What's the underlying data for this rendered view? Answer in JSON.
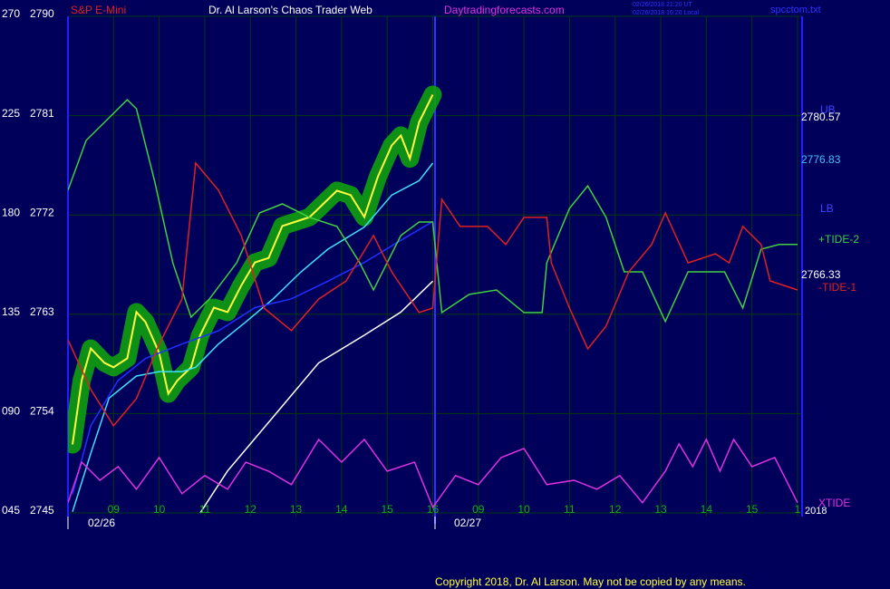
{
  "chart_data": {
    "type": "line",
    "title": "Dr. Al Larson's Chaos Trader Web",
    "subtitle": "S&P E-Mini",
    "site": "Daytradingforecasts.com",
    "timestamps": [
      "02/26/2018 21:20 UT",
      "02/26/2018 16:20 Local"
    ],
    "file": "spcctom.txt",
    "footer": "Copyright 2018, Dr. Al Larson. May not be copied by any means.",
    "dates": [
      "02/26",
      "02/27"
    ],
    "year": "2018",
    "background": "#00005a",
    "grid_color": "#003a10",
    "grid": true,
    "xlim": [
      0,
      16.1
    ],
    "xticks": [
      {
        "value": 1,
        "label": "09"
      },
      {
        "value": 2,
        "label": "10"
      },
      {
        "value": 3,
        "label": "11"
      },
      {
        "value": 4,
        "label": "12"
      },
      {
        "value": 5,
        "label": "13"
      },
      {
        "value": 6,
        "label": "14"
      },
      {
        "value": 7,
        "label": "15"
      },
      {
        "value": 8,
        "label": "16"
      },
      {
        "value": 9,
        "label": "09"
      },
      {
        "value": 10,
        "label": "10"
      },
      {
        "value": 11,
        "label": "11"
      },
      {
        "value": 12,
        "label": "12"
      },
      {
        "value": 13,
        "label": "13"
      },
      {
        "value": 14,
        "label": "14"
      },
      {
        "value": 15,
        "label": "15"
      },
      {
        "value": 16,
        "label": "1"
      }
    ],
    "ylim": [
      2745,
      2790
    ],
    "yticks": [
      2745,
      2754,
      2763,
      2772,
      2781,
      2790
    ],
    "y2lim": [
      45,
      270
    ],
    "y2ticks": [
      {
        "value": 45,
        "label": "045"
      },
      {
        "value": 90,
        "label": "090"
      },
      135,
      180,
      225,
      270
    ],
    "series": [
      {
        "color": "#ffff40",
        "glow": "#10a010",
        "x": [
          0.1,
          0.3,
          0.5,
          0.8,
          1.0,
          1.3,
          1.5,
          1.7,
          2.0,
          2.2,
          2.4,
          2.7,
          2.9,
          3.2,
          3.5,
          3.8,
          4.1,
          4.4,
          4.7,
          5.0,
          5.3,
          5.6,
          5.9,
          6.2,
          6.5,
          6.8,
          7.1,
          7.3,
          7.5,
          7.7,
          8.0
        ],
        "values": [
          2751.2,
          2757.0,
          2759.9,
          2758.6,
          2758.2,
          2759.0,
          2763.2,
          2762.3,
          2759.5,
          2755.8,
          2757.0,
          2758.2,
          2761.1,
          2763.6,
          2763.2,
          2765.6,
          2767.7,
          2768.1,
          2771.0,
          2771.4,
          2771.8,
          2773.0,
          2774.2,
          2773.8,
          2771.8,
          2775.5,
          2778.3,
          2779.2,
          2777.1,
          2780.4,
          2782.9
        ]
      },
      {
        "color": "#40e0ff",
        "x": [
          0.1,
          0.5,
          0.9,
          1.5,
          2.0,
          2.5,
          2.8,
          3.3,
          3.9,
          4.5,
          5.1,
          5.7,
          6.5,
          7.1,
          7.7,
          8.0
        ],
        "values": [
          2745.1,
          2750.4,
          2755.4,
          2757.4,
          2757.8,
          2757.8,
          2758.2,
          2760.3,
          2762.3,
          2764.4,
          2766.8,
          2768.9,
          2770.9,
          2773.8,
          2775.1,
          2776.7
        ]
      },
      {
        "color": "#2030ff",
        "x": [
          0.1,
          0.5,
          1.1,
          1.7,
          2.5,
          3.3,
          4.1,
          4.9,
          5.7,
          6.5,
          7.3,
          8.0
        ],
        "values": [
          2746.7,
          2752.9,
          2757.0,
          2759.0,
          2760.3,
          2761.5,
          2763.6,
          2764.4,
          2766.0,
          2767.7,
          2769.7,
          2771.4
        ]
      },
      {
        "color": "#ffffff",
        "x": [
          2.9,
          3.5,
          4.5,
          5.5,
          6.5,
          7.3,
          8.0
        ],
        "values": [
          2745.0,
          2748.8,
          2753.7,
          2758.6,
          2761.1,
          2763.2,
          2766.0
        ]
      },
      {
        "name": "+TIDE-2",
        "color": "#40d040",
        "axis": "y2",
        "x": [
          0.0,
          0.4,
          0.9,
          1.3,
          1.5,
          1.9,
          2.3,
          2.7,
          3.1,
          3.7,
          4.2,
          4.7,
          5.3,
          5.9,
          6.4,
          6.7,
          7.3,
          7.7,
          8.0,
          8.2,
          8.8,
          9.4,
          10.0,
          10.4,
          10.5,
          11.0,
          11.4,
          11.8,
          12.2,
          12.6,
          13.1,
          13.6,
          14.4,
          14.8,
          15.2,
          15.6,
          16.0
        ],
        "values": [
          191.2,
          213.8,
          224.0,
          232.2,
          228.1,
          195.3,
          158.3,
          133.7,
          141.9,
          158.3,
          180.9,
          185.0,
          178.9,
          174.8,
          158.3,
          146.0,
          170.7,
          176.8,
          176.8,
          135.8,
          144.0,
          146.0,
          135.8,
          135.8,
          158.3,
          183.0,
          193.2,
          178.9,
          154.2,
          154.2,
          131.7,
          154.2,
          154.2,
          137.8,
          164.5,
          166.6,
          166.6
        ]
      },
      {
        "name": "-TIDE-1",
        "color": "#e02020",
        "axis": "y2",
        "x": [
          0,
          0.5,
          1.0,
          1.5,
          2.0,
          2.5,
          2.8,
          3.3,
          3.8,
          4.3,
          4.9,
          5.5,
          6.1,
          6.7,
          7.1,
          7.7,
          8.0,
          8.2,
          8.6,
          9.2,
          9.6,
          10.0,
          10.5,
          10.6,
          11.0,
          11.4,
          11.8,
          12.3,
          12.8,
          13.1,
          13.6,
          14.2,
          14.5,
          14.8,
          15.2,
          15.4,
          16.0
        ],
        "values": [
          123.4,
          100.9,
          84.5,
          96.8,
          121.4,
          141.9,
          203.5,
          191.2,
          170.7,
          137.8,
          127.6,
          141.9,
          150.1,
          170.7,
          154.2,
          135.8,
          137.8,
          187.1,
          174.8,
          174.8,
          166.6,
          178.9,
          178.9,
          158.3,
          137.8,
          119.3,
          129.6,
          154.2,
          166.6,
          180.9,
          158.3,
          162.4,
          158.3,
          174.8,
          166.6,
          150.1,
          146.0
        ]
      },
      {
        "name": "XTIDE",
        "color": "#e030e0",
        "axis": "y2",
        "x": [
          0,
          0.3,
          0.7,
          1.1,
          1.5,
          2.0,
          2.5,
          3.0,
          3.5,
          3.9,
          4.4,
          4.9,
          5.5,
          6.0,
          6.5,
          7.0,
          7.6,
          8.0,
          8.5,
          9.0,
          9.5,
          10.0,
          10.5,
          11.1,
          11.6,
          12.1,
          12.6,
          13.1,
          13.4,
          13.7,
          14.0,
          14.3,
          14.6,
          15.0,
          15.5,
          16.0
        ],
        "values": [
          49.6,
          68.0,
          59.8,
          66.0,
          55.7,
          70.1,
          53.7,
          61.9,
          55.7,
          68.0,
          63.9,
          57.8,
          78.3,
          68.0,
          78.3,
          63.9,
          68.0,
          47.5,
          61.9,
          57.8,
          70.1,
          74.2,
          57.8,
          59.8,
          55.7,
          61.9,
          49.6,
          63.9,
          76.3,
          66.0,
          78.3,
          63.9,
          78.3,
          66.0,
          70.1,
          49.6
        ]
      }
    ],
    "annotations": [
      {
        "text": "UB",
        "color": "#4040ff"
      },
      {
        "text": "2780.57",
        "color": "#ffffff"
      },
      {
        "text": "2776.83",
        "color": "#40c0ff"
      },
      {
        "text": "LB",
        "color": "#4040ff"
      },
      {
        "text": "2766.33",
        "color": "#ffffff"
      }
    ]
  }
}
